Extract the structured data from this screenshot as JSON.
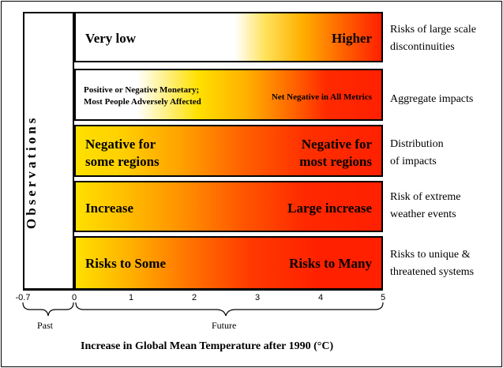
{
  "side_label": "Observations",
  "bands": [
    {
      "left": "Very low",
      "right": "Higher"
    },
    {
      "left": "Positive or Negative Monetary;\nMost People Adversely Affected",
      "right": "Net Negative in All Metrics"
    },
    {
      "left": "Negative for\nsome regions",
      "right": "Negative for\nmost regions"
    },
    {
      "left": "Increase",
      "right": "Large increase"
    },
    {
      "left": "Risks to Some",
      "right": "Risks to Many"
    }
  ],
  "row_labels": [
    "Risks of large scale\ndiscontinuities",
    "Aggregate impacts",
    "Distribution\nof impacts",
    "Risk of extreme\nweather events",
    "Risks to unique &\nthreatened systems"
  ],
  "axis": {
    "ticks": [
      "-0.7",
      "0",
      "1",
      "2",
      "3",
      "4",
      "5"
    ],
    "past_label": "Past",
    "future_label": "Future",
    "title": "Increase in Global Mean Temperature after 1990 (°C)"
  },
  "colors": {
    "yellow": "#ffe000",
    "orange": "#ff8c00",
    "red": "#ff2000"
  }
}
